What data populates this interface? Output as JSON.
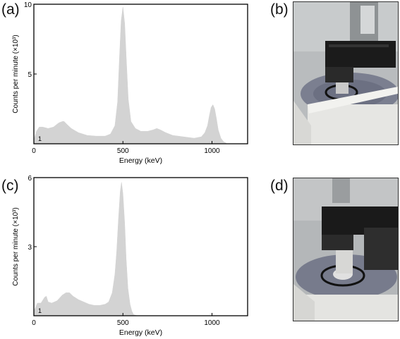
{
  "panels": {
    "a": "(a)",
    "b": "(b)",
    "c": "(c)",
    "d": "(d)"
  },
  "chart_data": [
    {
      "type": "area",
      "panel": "(a)",
      "xlabel": "Energy (keV)",
      "ylabel": "Counts per minute (×10³)",
      "xlim": [
        0,
        1200
      ],
      "ylim": [
        0,
        10
      ],
      "xticks": [
        "0",
        "500",
        "1000"
      ],
      "yticks": [
        "5",
        "10"
      ],
      "corner_label": "1",
      "fill_color": "#d3d3d3",
      "x": [
        0,
        15,
        30,
        50,
        80,
        110,
        140,
        160,
        170,
        185,
        210,
        250,
        300,
        350,
        400,
        430,
        455,
        470,
        480,
        490,
        500,
        510,
        520,
        530,
        545,
        570,
        600,
        640,
        670,
        690,
        710,
        740,
        780,
        840,
        900,
        940,
        960,
        975,
        985,
        995,
        1005,
        1015,
        1025,
        1035,
        1050,
        1065,
        1080
      ],
      "y": [
        0.3,
        0.9,
        1.2,
        1.2,
        1.1,
        1.2,
        1.5,
        1.6,
        1.6,
        1.4,
        1.1,
        0.8,
        0.6,
        0.55,
        0.55,
        0.7,
        1.3,
        3.0,
        6.0,
        8.8,
        9.8,
        8.6,
        5.8,
        3.2,
        1.6,
        1.1,
        0.9,
        0.9,
        1.0,
        1.1,
        1.0,
        0.8,
        0.6,
        0.5,
        0.4,
        0.5,
        0.8,
        1.3,
        2.0,
        2.6,
        2.8,
        2.5,
        1.8,
        1.0,
        0.4,
        0.15,
        0.05
      ]
    },
    {
      "type": "area",
      "panel": "(c)",
      "xlabel": "Energy (keV)",
      "ylabel": "Counts per minute (×10³)",
      "xlim": [
        0,
        1200
      ],
      "ylim": [
        0,
        6
      ],
      "xticks": [
        "0",
        "500",
        "1000"
      ],
      "yticks": [
        "3",
        "6"
      ],
      "corner_label": "1",
      "fill_color": "#d3d3d3",
      "x": [
        0,
        20,
        40,
        60,
        70,
        80,
        100,
        130,
        160,
        180,
        200,
        220,
        250,
        280,
        310,
        340,
        370,
        400,
        420,
        440,
        455,
        465,
        475,
        485,
        492,
        500,
        510,
        518,
        528,
        540,
        550,
        560,
        580
      ],
      "y": [
        0.2,
        0.55,
        0.55,
        0.8,
        0.85,
        0.6,
        0.55,
        0.65,
        0.9,
        1.0,
        1.0,
        0.85,
        0.7,
        0.6,
        0.5,
        0.45,
        0.45,
        0.5,
        0.6,
        1.0,
        1.8,
        2.8,
        4.2,
        5.4,
        5.8,
        5.3,
        4.0,
        2.5,
        1.2,
        0.5,
        0.2,
        0.05,
        0.0
      ]
    }
  ]
}
